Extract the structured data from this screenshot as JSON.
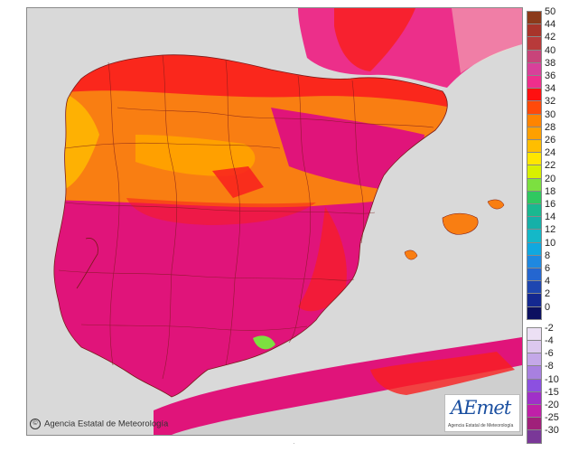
{
  "credit": {
    "text": "Agencia Estatal de Meteorología",
    "symbol": "©"
  },
  "logo": {
    "mark": "AEmet",
    "subtitle": "Agencia Estatal de Meteorología"
  },
  "colors": {
    "sea": "#d9d9d9",
    "france": "#ec2f8a",
    "africa_land": "#cfcfcf",
    "north_plateau": "#f97e12",
    "south_heat": "#e0147a",
    "coast_red": "#f91e1e",
    "borders": "#7a1a1a"
  },
  "legend": {
    "positive": [
      {
        "value": "50",
        "color": "#8b3a1a"
      },
      {
        "value": "44",
        "color": "#a8342a"
      },
      {
        "value": "42",
        "color": "#b83a3a"
      },
      {
        "value": "40",
        "color": "#c8447a"
      },
      {
        "value": "38",
        "color": "#d8409a"
      },
      {
        "value": "36",
        "color": "#ef2e8c"
      },
      {
        "value": "34",
        "color": "#ff1010"
      },
      {
        "value": "32",
        "color": "#ff4a0a"
      },
      {
        "value": "30",
        "color": "#ff8400"
      },
      {
        "value": "28",
        "color": "#ffa000"
      },
      {
        "value": "26",
        "color": "#ffbe00"
      },
      {
        "value": "24",
        "color": "#ffe600"
      },
      {
        "value": "22",
        "color": "#d8f000"
      },
      {
        "value": "20",
        "color": "#7ce040"
      },
      {
        "value": "18",
        "color": "#30c860"
      },
      {
        "value": "16",
        "color": "#1ab890"
      },
      {
        "value": "14",
        "color": "#16b0a8"
      },
      {
        "value": "12",
        "color": "#14b8c8"
      },
      {
        "value": "10",
        "color": "#10a8e0"
      },
      {
        "value": "8",
        "color": "#1e88e0"
      },
      {
        "value": "6",
        "color": "#2466d0"
      },
      {
        "value": "4",
        "color": "#1e46b0"
      },
      {
        "value": "2",
        "color": "#142890"
      },
      {
        "value": "0",
        "color": "#0c1060"
      }
    ],
    "negative": [
      {
        "value": "-2",
        "color": "#ece0f4"
      },
      {
        "value": "-4",
        "color": "#dcc8ee"
      },
      {
        "value": "-6",
        "color": "#c4a8e8"
      },
      {
        "value": "-8",
        "color": "#a880e0"
      },
      {
        "value": "-10",
        "color": "#8c50e0"
      },
      {
        "value": "-15",
        "color": "#a030c8"
      },
      {
        "value": "-20",
        "color": "#c020a8"
      },
      {
        "value": "-25",
        "color": "#a0207a"
      },
      {
        "value": "-30",
        "color": "#7a3898"
      }
    ]
  }
}
